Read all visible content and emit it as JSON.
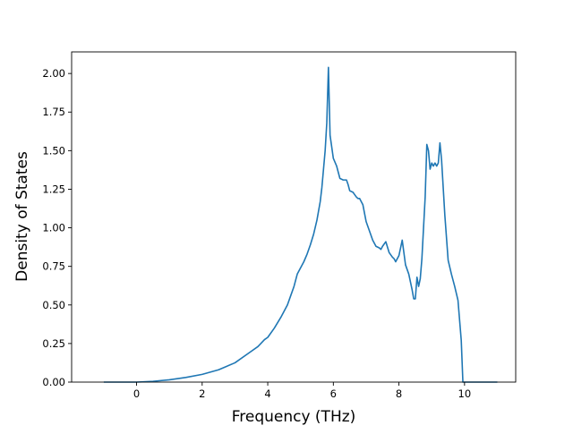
{
  "chart_data": {
    "type": "line",
    "title": "",
    "xlabel": "Frequency (THz)",
    "ylabel": "Density of States",
    "xlim": [
      -1.98,
      11.56
    ],
    "ylim": [
      0,
      2.14
    ],
    "xticks": [
      0,
      2,
      4,
      6,
      8,
      10
    ],
    "xtick_labels": [
      "0",
      "2",
      "4",
      "6",
      "8",
      "10"
    ],
    "yticks": [
      0,
      0.25,
      0.5,
      0.75,
      1.0,
      1.25,
      1.5,
      1.75,
      2.0
    ],
    "ytick_labels": [
      "0.00",
      "0.25",
      "0.50",
      "0.75",
      "1.00",
      "1.25",
      "1.50",
      "1.75",
      "2.00"
    ],
    "grid": false,
    "legend": "none",
    "line_color": "#1f77b4",
    "series": [
      {
        "x": [
          -1.0,
          0.0,
          0.5,
          1.0,
          1.5,
          2.0,
          2.5,
          3.0,
          3.5,
          3.7,
          3.9,
          4.0,
          4.2,
          4.4,
          4.6,
          4.7,
          4.8,
          4.9,
          5.0,
          5.1,
          5.2,
          5.3,
          5.4,
          5.5,
          5.6,
          5.65,
          5.7,
          5.75,
          5.8,
          5.85,
          5.9,
          6.0,
          6.1,
          6.15,
          6.2,
          6.3,
          6.4,
          6.45,
          6.5,
          6.6,
          6.7,
          6.75,
          6.8,
          6.9,
          7.0,
          7.1,
          7.2,
          7.3,
          7.4,
          7.45,
          7.5,
          7.6,
          7.7,
          7.8,
          7.85,
          7.9,
          8.0,
          8.1,
          8.2,
          8.3,
          8.35,
          8.4,
          8.45,
          8.5,
          8.55,
          8.6,
          8.65,
          8.7,
          8.75,
          8.8,
          8.85,
          8.9,
          8.95,
          9.0,
          9.05,
          9.1,
          9.15,
          9.2,
          9.25,
          9.3,
          9.4,
          9.5,
          9.6,
          9.7,
          9.8,
          9.9,
          9.95,
          10.0,
          10.1,
          10.5,
          11.0
        ],
        "y": [
          0.0,
          0.0,
          0.005,
          0.015,
          0.03,
          0.05,
          0.08,
          0.125,
          0.2,
          0.23,
          0.275,
          0.29,
          0.35,
          0.42,
          0.5,
          0.56,
          0.62,
          0.7,
          0.74,
          0.78,
          0.83,
          0.89,
          0.96,
          1.05,
          1.17,
          1.26,
          1.38,
          1.5,
          1.68,
          2.04,
          1.6,
          1.45,
          1.4,
          1.36,
          1.32,
          1.31,
          1.31,
          1.28,
          1.24,
          1.23,
          1.2,
          1.19,
          1.19,
          1.15,
          1.04,
          0.98,
          0.92,
          0.88,
          0.87,
          0.86,
          0.88,
          0.91,
          0.84,
          0.81,
          0.8,
          0.78,
          0.82,
          0.92,
          0.76,
          0.7,
          0.65,
          0.6,
          0.54,
          0.54,
          0.68,
          0.62,
          0.67,
          0.8,
          1.0,
          1.2,
          1.54,
          1.5,
          1.38,
          1.42,
          1.4,
          1.42,
          1.4,
          1.42,
          1.55,
          1.44,
          1.08,
          0.79,
          0.7,
          0.62,
          0.53,
          0.27,
          0.0,
          0.0,
          0.0,
          0.0,
          0.0
        ]
      }
    ]
  }
}
